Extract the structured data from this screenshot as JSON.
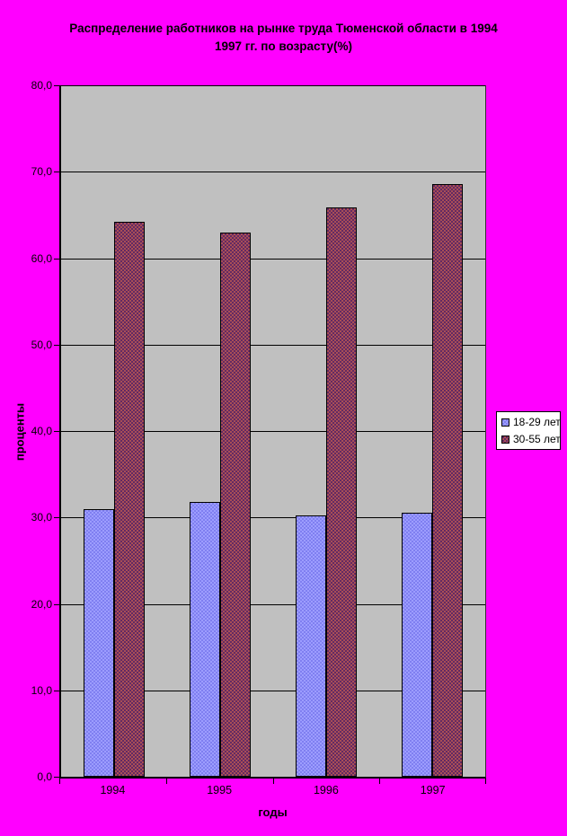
{
  "window": {
    "background": "#ff00ff",
    "plot_background": "#c0c0c0",
    "gridline_color": "#000000"
  },
  "chart_data": {
    "type": "bar",
    "title_line1": "Распределение работников на рынке труда Тюменской области в 1994",
    "title_line2": "1997 гг. по возрасту(%)",
    "xlabel": "годы",
    "ylabel": "проценты",
    "categories": [
      "1994",
      "1995",
      "1996",
      "1997"
    ],
    "series": [
      {
        "name": "18-29 лет",
        "values": [
          31.0,
          31.8,
          30.2,
          30.5
        ],
        "color_a": "#9d9dff",
        "color_b": "#7f7ff0"
      },
      {
        "name": "30-55 лет",
        "values": [
          64.2,
          63.0,
          65.9,
          68.6
        ],
        "color_a": "#a94f56",
        "color_b": "#632a63"
      }
    ],
    "ylim": [
      0,
      80
    ],
    "ytick_step": 10,
    "ytick_labels": [
      "0,0",
      "10,0",
      "20,0",
      "30,0",
      "40,0",
      "50,0",
      "60,0",
      "70,0",
      "80,0"
    ],
    "grid": true,
    "legend_position": "right"
  }
}
